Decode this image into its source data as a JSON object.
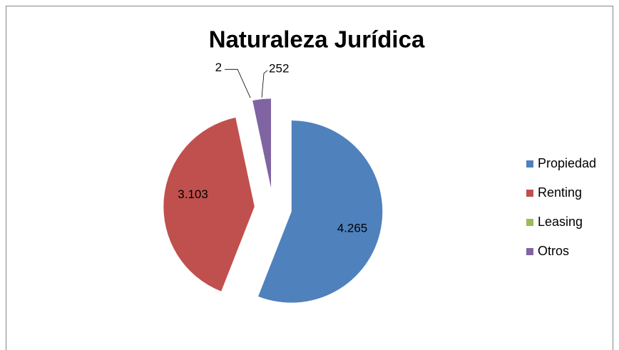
{
  "chart_data": {
    "type": "pie",
    "title": "Naturaleza Jurídica",
    "categories": [
      "Propiedad",
      "Renting",
      "Leasing",
      "Otros"
    ],
    "values": [
      4265,
      3103,
      2,
      252
    ],
    "value_labels": [
      "4.265",
      "3.103",
      "2",
      "252"
    ],
    "colors": [
      "#4f81bd",
      "#c0504d",
      "#9bbb59",
      "#8064a2"
    ],
    "legend": "right"
  }
}
